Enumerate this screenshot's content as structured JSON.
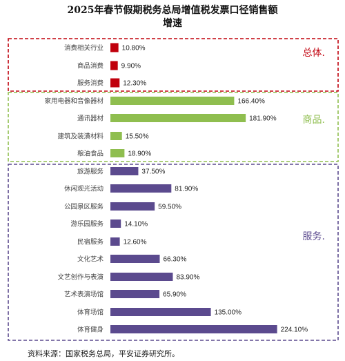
{
  "title_line1": "2025年春节假期税务总局增值税发票口径销售额",
  "title_line2": "增速",
  "source": "资料来源：国家税务总局，平安证券研究所。",
  "chart_data": {
    "type": "bar",
    "orientation": "horizontal",
    "title": "2025年春节假期税务总局增值税发票口径销售额增速",
    "xlim": [
      0,
      230
    ],
    "unit": "%",
    "grid": false,
    "groups": [
      {
        "label": "总体.",
        "color": "#c0000c",
        "border_color": "#c0000c",
        "items": [
          {
            "category": "消费相关行业",
            "value": 10.8,
            "label": "10.80%"
          },
          {
            "category": "商品消费",
            "value": 9.9,
            "label": "9.90%"
          },
          {
            "category": "服务消费",
            "value": 12.3,
            "label": "12.30%"
          }
        ]
      },
      {
        "label": "商品.",
        "color": "#8fbe4f",
        "border_color": "#8fbe4f",
        "items": [
          {
            "category": "家用电器和音像器材",
            "value": 166.4,
            "label": "166.40%"
          },
          {
            "category": "通讯器材",
            "value": 181.9,
            "label": "181.90%"
          },
          {
            "category": "建筑及装潢材料",
            "value": 15.5,
            "label": "15.50%"
          },
          {
            "category": "粮油食品",
            "value": 18.9,
            "label": "18.90%"
          }
        ]
      },
      {
        "label": "服务.",
        "color": "#5b4a8e",
        "border_color": "#5b4a8e",
        "items": [
          {
            "category": "旅游服务",
            "value": 37.5,
            "label": "37.50%"
          },
          {
            "category": "休闲观光活动",
            "value": 81.9,
            "label": "81.90%"
          },
          {
            "category": "公园景区服务",
            "value": 59.5,
            "label": "59.50%"
          },
          {
            "category": "游乐园服务",
            "value": 14.1,
            "label": "14.10%"
          },
          {
            "category": "民宿服务",
            "value": 12.6,
            "label": "12.60%"
          },
          {
            "category": "文化艺术",
            "value": 66.3,
            "label": "66.30%"
          },
          {
            "category": "文艺创作与表演",
            "value": 83.9,
            "label": "83.90%"
          },
          {
            "category": "艺术表演场馆",
            "value": 65.9,
            "label": "65.90%"
          },
          {
            "category": "体育场馆",
            "value": 135.0,
            "label": "135.00%"
          },
          {
            "category": "体育健身",
            "value": 224.1,
            "label": "224.10%"
          }
        ]
      }
    ]
  }
}
